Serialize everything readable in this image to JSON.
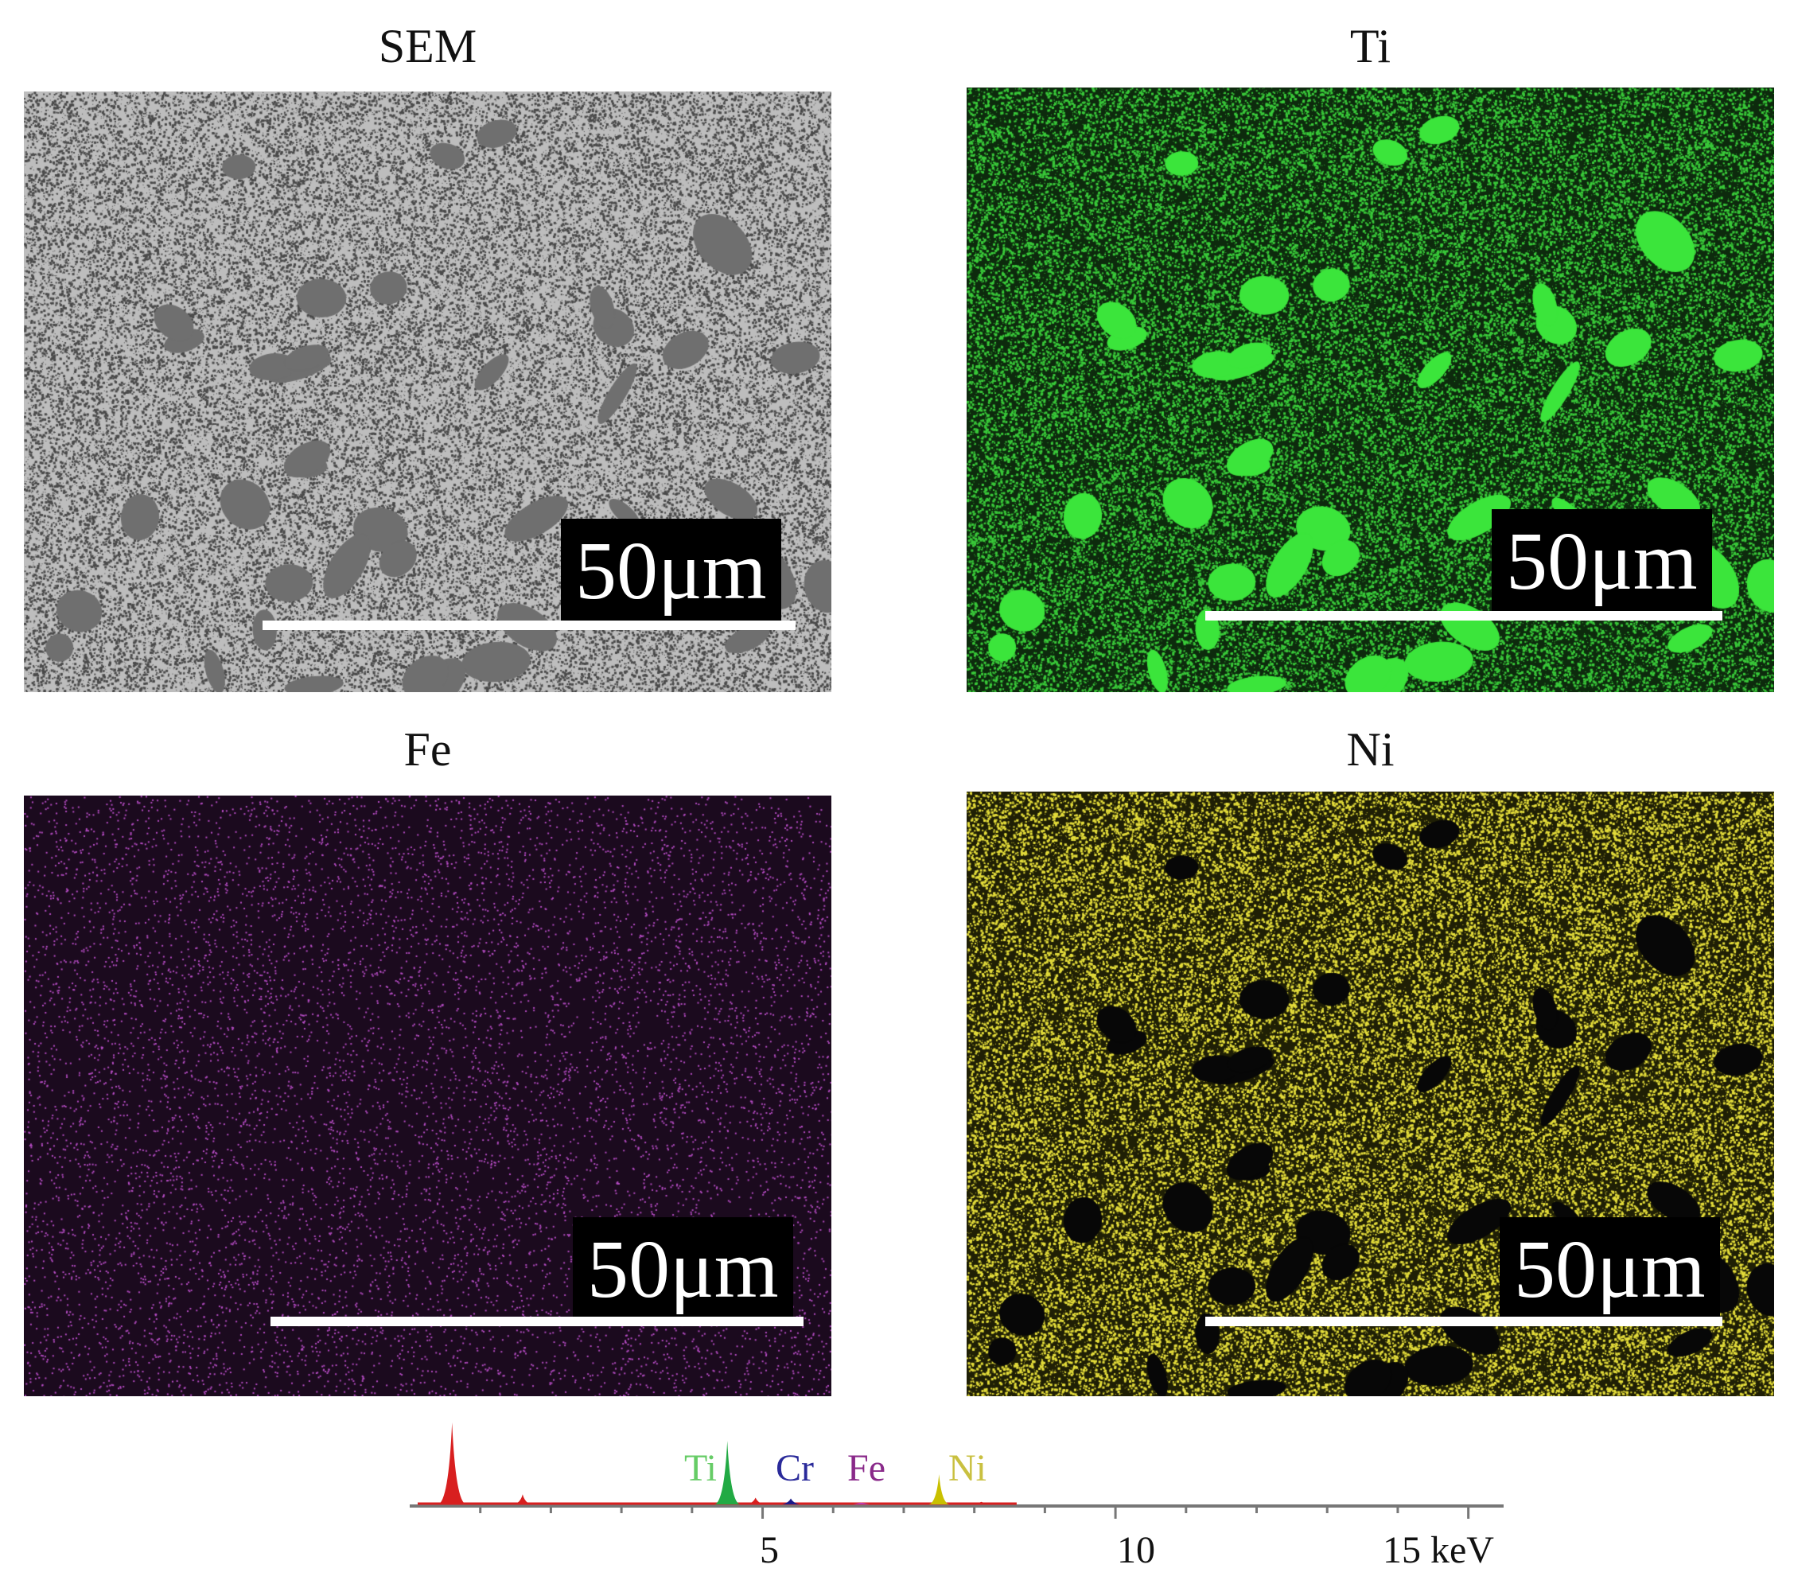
{
  "panels": [
    {
      "id": "sem",
      "title": "SEM",
      "scale_label": "50μm",
      "colors": {
        "bg": "#bdbdbd",
        "dot": "#4a4a4a",
        "blob": "#6f6f6f"
      }
    },
    {
      "id": "ti",
      "title": "Ti",
      "scale_label": "50μm",
      "colors": {
        "bg": "#0d2a0d",
        "dot": "#39c939",
        "blob": "#3be53b"
      }
    },
    {
      "id": "fe",
      "title": "Fe",
      "scale_label": "50μm",
      "colors": {
        "bg": "#1b0a1e",
        "dot": "#b44bc2",
        "blob": "#1b0a1e"
      }
    },
    {
      "id": "ni",
      "title": "Ni",
      "scale_label": "50μm",
      "colors": {
        "bg": "#1f1f05",
        "dot": "#e3dc3a",
        "blob": "#070707"
      }
    }
  ],
  "spectrum": {
    "element_labels": [
      {
        "text": "Ti",
        "color": "#66cc66"
      },
      {
        "text": "Cr",
        "color": "#2a2a9a"
      },
      {
        "text": "Fe",
        "color": "#8a2a8a"
      },
      {
        "text": "Ni",
        "color": "#c9c040"
      }
    ],
    "axis_tick_labels": [
      "5",
      "10",
      "15 keV"
    ],
    "axis_range_keV": [
      0,
      15.5
    ],
    "peaks": [
      {
        "energy": 0.6,
        "height": 1.0,
        "color": "#d81f1f"
      },
      {
        "energy": 1.6,
        "height": 0.14,
        "color": "#d81f1f"
      },
      {
        "energy": 4.5,
        "height": 0.78,
        "color": "#22aa44"
      },
      {
        "energy": 4.9,
        "height": 0.1,
        "color": "#d81f1f"
      },
      {
        "energy": 5.4,
        "height": 0.09,
        "color": "#1a1a8a"
      },
      {
        "energy": 6.4,
        "height": 0.04,
        "color": "#c03ab0"
      },
      {
        "energy": 7.5,
        "height": 0.38,
        "color": "#c9c000"
      },
      {
        "energy": 8.1,
        "height": 0.05,
        "color": "#d81f1f"
      }
    ]
  }
}
